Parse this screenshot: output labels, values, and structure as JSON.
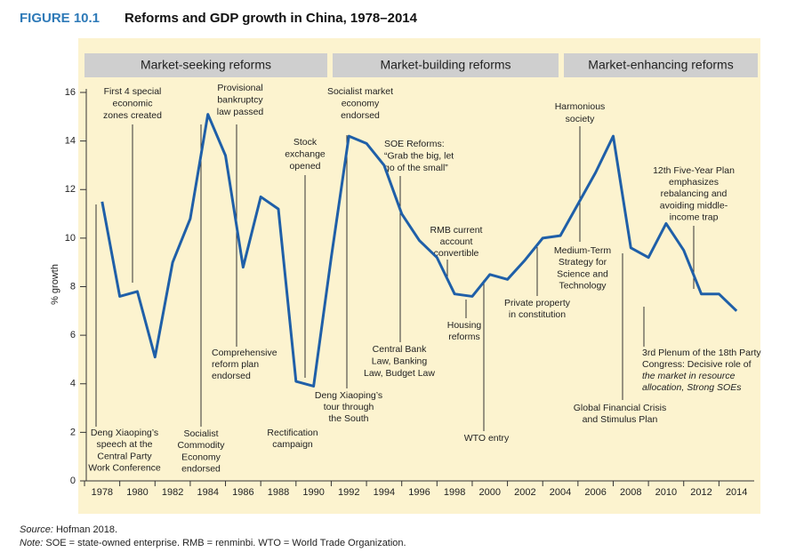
{
  "chart_data": {
    "type": "line",
    "figure_label": "FIGURE 10.1",
    "title": "Reforms and GDP growth in China, 1978–2014",
    "ylabel": "% growth",
    "x": [
      1978,
      1979,
      1980,
      1981,
      1982,
      1983,
      1984,
      1985,
      1986,
      1987,
      1988,
      1989,
      1990,
      1991,
      1992,
      1993,
      1994,
      1995,
      1996,
      1997,
      1998,
      1999,
      2000,
      2001,
      2002,
      2003,
      2004,
      2005,
      2006,
      2007,
      2008,
      2009,
      2010,
      2011,
      2012,
      2013,
      2014
    ],
    "series": [
      {
        "name": "GDP growth",
        "color": "#1f5fa8",
        "values": [
          11.5,
          7.6,
          7.8,
          5.1,
          9.0,
          10.8,
          15.1,
          13.4,
          8.8,
          11.7,
          11.2,
          4.1,
          3.9,
          9.2,
          14.2,
          13.9,
          13.0,
          11.0,
          9.9,
          9.2,
          7.7,
          7.6,
          8.5,
          8.3,
          9.1,
          10.0,
          10.1,
          11.4,
          12.7,
          14.2,
          9.6,
          9.2,
          10.6,
          9.5,
          7.7,
          7.7,
          7.0
        ]
      }
    ],
    "xlim": [
      1977.1,
      2015
    ],
    "ylim": [
      0,
      16
    ],
    "xticks": [
      1978,
      1980,
      1982,
      1984,
      1986,
      1988,
      1990,
      1992,
      1994,
      1996,
      1998,
      2000,
      2002,
      2004,
      2006,
      2008,
      2010,
      2012,
      2014
    ],
    "yticks": [
      0,
      2,
      4,
      6,
      8,
      10,
      12,
      14,
      16
    ],
    "periods": [
      "Market-seeking reforms",
      "Market-building reforms",
      "Market-enhancing reforms"
    ],
    "annotations": [
      {
        "lines": [
          "First 4 special",
          "economic",
          "zones created"
        ]
      },
      {
        "lines": [
          "Provisional",
          "bankruptcy",
          "law passed"
        ]
      },
      {
        "lines": [
          "Socialist market",
          "economy",
          "endorsed"
        ]
      },
      {
        "lines": [
          "Stock",
          "exchange",
          "opened"
        ]
      },
      {
        "lines": [
          "SOE Reforms:",
          "“Grab the big, let",
          "go of the small”"
        ]
      },
      {
        "lines": [
          "RMB current",
          "account",
          "convertible"
        ]
      },
      {
        "lines": [
          "Harmonious",
          "society"
        ]
      },
      {
        "lines": [
          "12th Five-Year Plan",
          "emphasizes",
          "rebalancing and",
          "avoiding middle-",
          "income trap"
        ]
      },
      {
        "lines": [
          "Medium-Term",
          "Strategy for",
          "Science and",
          "Technology"
        ]
      },
      {
        "lines": [
          "Private property",
          "in constitution"
        ]
      },
      {
        "lines": [
          "Housing",
          "reforms"
        ]
      },
      {
        "lines": [
          "Central Bank",
          "Law, Banking",
          "Law, Budget Law"
        ]
      },
      {
        "lines": [
          "Deng Xiaoping’s",
          "tour through",
          "the South"
        ]
      },
      {
        "lines": [
          "WTO entry"
        ]
      },
      {
        "lines": [
          "Global Financial Crisis",
          "and Stimulus Plan"
        ]
      },
      {
        "lines": [
          "3rd Plenum of the 18th Party",
          "Congress: Decisive role of",
          "the market in resource",
          "allocation, Strong SOEs"
        ]
      },
      {
        "lines": [
          "Comprehensive",
          "reform plan",
          "endorsed"
        ]
      },
      {
        "lines": [
          "Rectification",
          "campaign"
        ]
      },
      {
        "lines": [
          "Socialist",
          "Commodity",
          "Economy",
          "endorsed"
        ]
      },
      {
        "lines": [
          "Deng Xiaoping’s",
          "speech at the",
          "Central Party",
          "Work Conference"
        ]
      }
    ],
    "source_label": "Source:",
    "source": "Hofman 2018.",
    "note_label": "Note:",
    "note": "SOE = state-owned enterprise. RMB = renminbi. WTO = World Trade Organization."
  }
}
